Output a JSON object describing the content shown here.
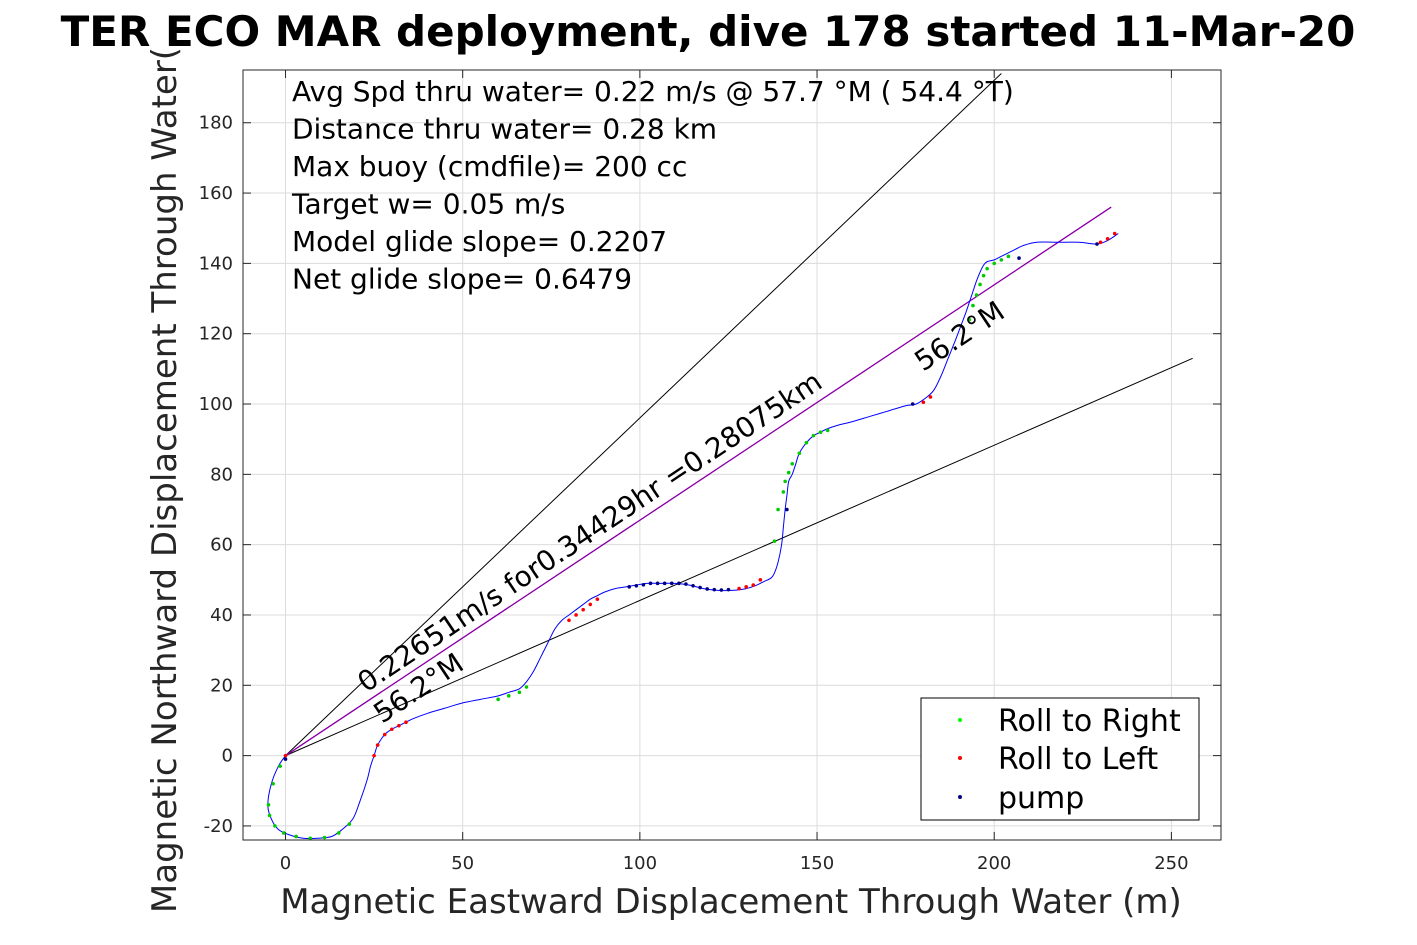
{
  "chart_data": {
    "type": "line",
    "title": "TER ECO MAR deployment, dive 178 started 11-Mar-20",
    "xlabel": "Magnetic Eastward Displacement Through Water (m)",
    "ylabel": "Magnetic Northward Displacement Through Water(",
    "xlim": [
      -12,
      264
    ],
    "ylim": [
      -24,
      195
    ],
    "xticks": [
      0,
      50,
      100,
      150,
      200,
      250
    ],
    "yticks": [
      -20,
      0,
      20,
      40,
      60,
      80,
      100,
      120,
      140,
      160,
      180
    ],
    "grid": true,
    "stats": [
      "Avg Spd thru water=  0.22 m/s @  57.7 °M ( 54.4 °T)",
      "Distance thru water=  0.28 km",
      "Max buoy (cmdfile)= 200 cc",
      "Target w= 0.05 m/s",
      "Model glide slope= 0.2207",
      "Net glide slope= 0.6479"
    ],
    "annotations": {
      "speed_text": "0.22651m/s for0.34429hr =0.28075km",
      "heading_lower": "56.2°M",
      "heading_upper": "56.2°M"
    },
    "reference_lines": [
      {
        "color": "#000000",
        "x": [
          0,
          202
        ],
        "y": [
          0,
          194
        ]
      },
      {
        "color": "#000000",
        "x": [
          0,
          256
        ],
        "y": [
          0,
          113
        ]
      },
      {
        "color": "#ff00ff",
        "x": [
          0,
          233
        ],
        "y": [
          0,
          156
        ]
      },
      {
        "color": "#8000a0",
        "x": [
          0,
          233
        ],
        "y": [
          0,
          156
        ]
      }
    ],
    "track": {
      "name": "",
      "color": "#0000ff",
      "x": [
        0,
        -2,
        -4,
        -5,
        -4,
        -2,
        1,
        5,
        9,
        13,
        16,
        19,
        21,
        23,
        24,
        25,
        26,
        28,
        30,
        32,
        34,
        36,
        40,
        45,
        50,
        55,
        60,
        63,
        66,
        68,
        70,
        72,
        74,
        76,
        78,
        80,
        82,
        84,
        86,
        88,
        90,
        93,
        96,
        99,
        102,
        106,
        110,
        114,
        118,
        122,
        126,
        130,
        133,
        135,
        137,
        138,
        139,
        140,
        140.5,
        141,
        141.5,
        142,
        143,
        144,
        145,
        147,
        149,
        151,
        153,
        156,
        160,
        165,
        170,
        175,
        178,
        181,
        183,
        185,
        187,
        189,
        190.5,
        192,
        193,
        194,
        195,
        196,
        197,
        198,
        200,
        202,
        204,
        206,
        208,
        212,
        218,
        224,
        229,
        232,
        235
      ],
      "y": [
        0,
        -3,
        -8,
        -14,
        -18,
        -21,
        -22.5,
        -23.5,
        -23.5,
        -23,
        -21,
        -18,
        -13,
        -7,
        -3,
        0,
        3,
        6,
        7.5,
        8.5,
        9.5,
        10.5,
        12,
        13.5,
        15,
        16,
        17,
        18,
        19,
        21,
        24,
        28,
        32,
        36,
        38.5,
        40,
        41.5,
        43,
        44.5,
        45.5,
        46.5,
        47.5,
        48,
        48.5,
        49,
        49,
        49,
        48.5,
        47.5,
        47,
        47,
        47.5,
        48.5,
        49.5,
        50.5,
        52,
        55,
        60,
        65,
        70,
        74,
        78,
        80,
        83,
        86,
        89,
        91,
        92,
        93,
        94,
        95,
        96.5,
        98,
        99.5,
        100,
        102,
        104,
        108,
        113,
        118,
        122,
        126,
        129,
        132,
        135,
        137.5,
        139.5,
        140.5,
        141,
        142,
        143,
        144,
        145,
        146,
        146,
        146,
        145.5,
        146.5,
        148.5
      ]
    },
    "roll_right_points": {
      "color": "#00cc00",
      "x": [
        -1.5,
        -3.5,
        -4.8,
        -4.5,
        -3,
        -0.5,
        3,
        7,
        11,
        15,
        18,
        60,
        63,
        66,
        68,
        138,
        139,
        140.5,
        141,
        142,
        143,
        145,
        147,
        149,
        151,
        153,
        193,
        194,
        195,
        196,
        197,
        198,
        200,
        202,
        204
      ],
      "y": [
        -3,
        -8,
        -14,
        -17,
        -20,
        -22,
        -23,
        -23.5,
        -23.3,
        -22,
        -19.5,
        16,
        17,
        18,
        19.5,
        61,
        70,
        75,
        78,
        80.5,
        83,
        86,
        89,
        91,
        92,
        92.5,
        124,
        128,
        131,
        134,
        136.5,
        138.5,
        140,
        141,
        142
      ]
    },
    "roll_left_points": {
      "color": "#ff0000",
      "x": [
        0,
        25,
        26,
        28,
        30,
        32,
        34,
        80,
        82,
        84,
        86,
        88,
        128,
        130,
        132,
        134,
        180,
        182,
        230,
        232,
        234
      ],
      "y": [
        0,
        0,
        3,
        6,
        7.5,
        8.5,
        9.5,
        38.5,
        40,
        41.5,
        43,
        44.5,
        47.5,
        48,
        48.5,
        50,
        100.5,
        102,
        146,
        147,
        148.5
      ]
    },
    "pump_points": {
      "color": "#000080",
      "x": [
        0,
        97,
        99,
        101,
        103,
        105,
        107,
        109,
        111,
        113,
        115,
        117,
        119,
        121,
        123,
        125,
        141.5,
        177,
        207,
        229
      ],
      "y": [
        -1,
        48,
        48.3,
        48.6,
        49,
        49,
        49,
        49,
        49,
        48.8,
        48.3,
        47.8,
        47.4,
        47.2,
        47.1,
        47.2,
        70,
        100,
        141.5,
        145.5
      ]
    },
    "legend": {
      "placement": "bottom-right",
      "entries": [
        "Roll to Right",
        "Roll to Left",
        "pump"
      ]
    }
  }
}
